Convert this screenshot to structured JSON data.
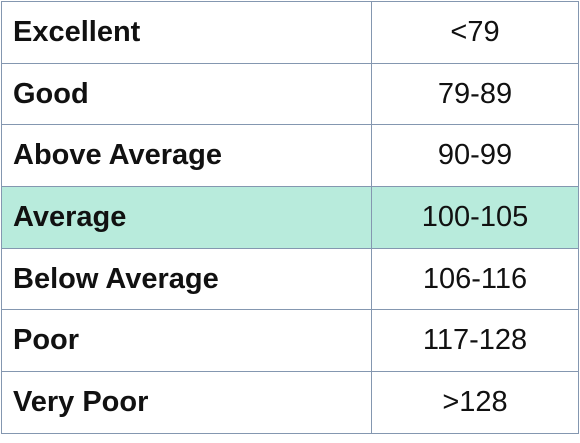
{
  "table": {
    "rows": [
      {
        "label": "Excellent",
        "range": "<79",
        "highlight": false
      },
      {
        "label": "Good",
        "range": "79-89",
        "highlight": false
      },
      {
        "label": "Above Average",
        "range": "90-99",
        "highlight": false
      },
      {
        "label": "Average",
        "range": "100-105",
        "highlight": true
      },
      {
        "label": "Below Average",
        "range": "106-116",
        "highlight": false
      },
      {
        "label": "Poor",
        "range": "117-128",
        "highlight": false
      },
      {
        "label": "Very Poor",
        "range": ">128",
        "highlight": false
      }
    ],
    "highlight_color": "#b8ebdc",
    "border_color": "#8497b0"
  }
}
